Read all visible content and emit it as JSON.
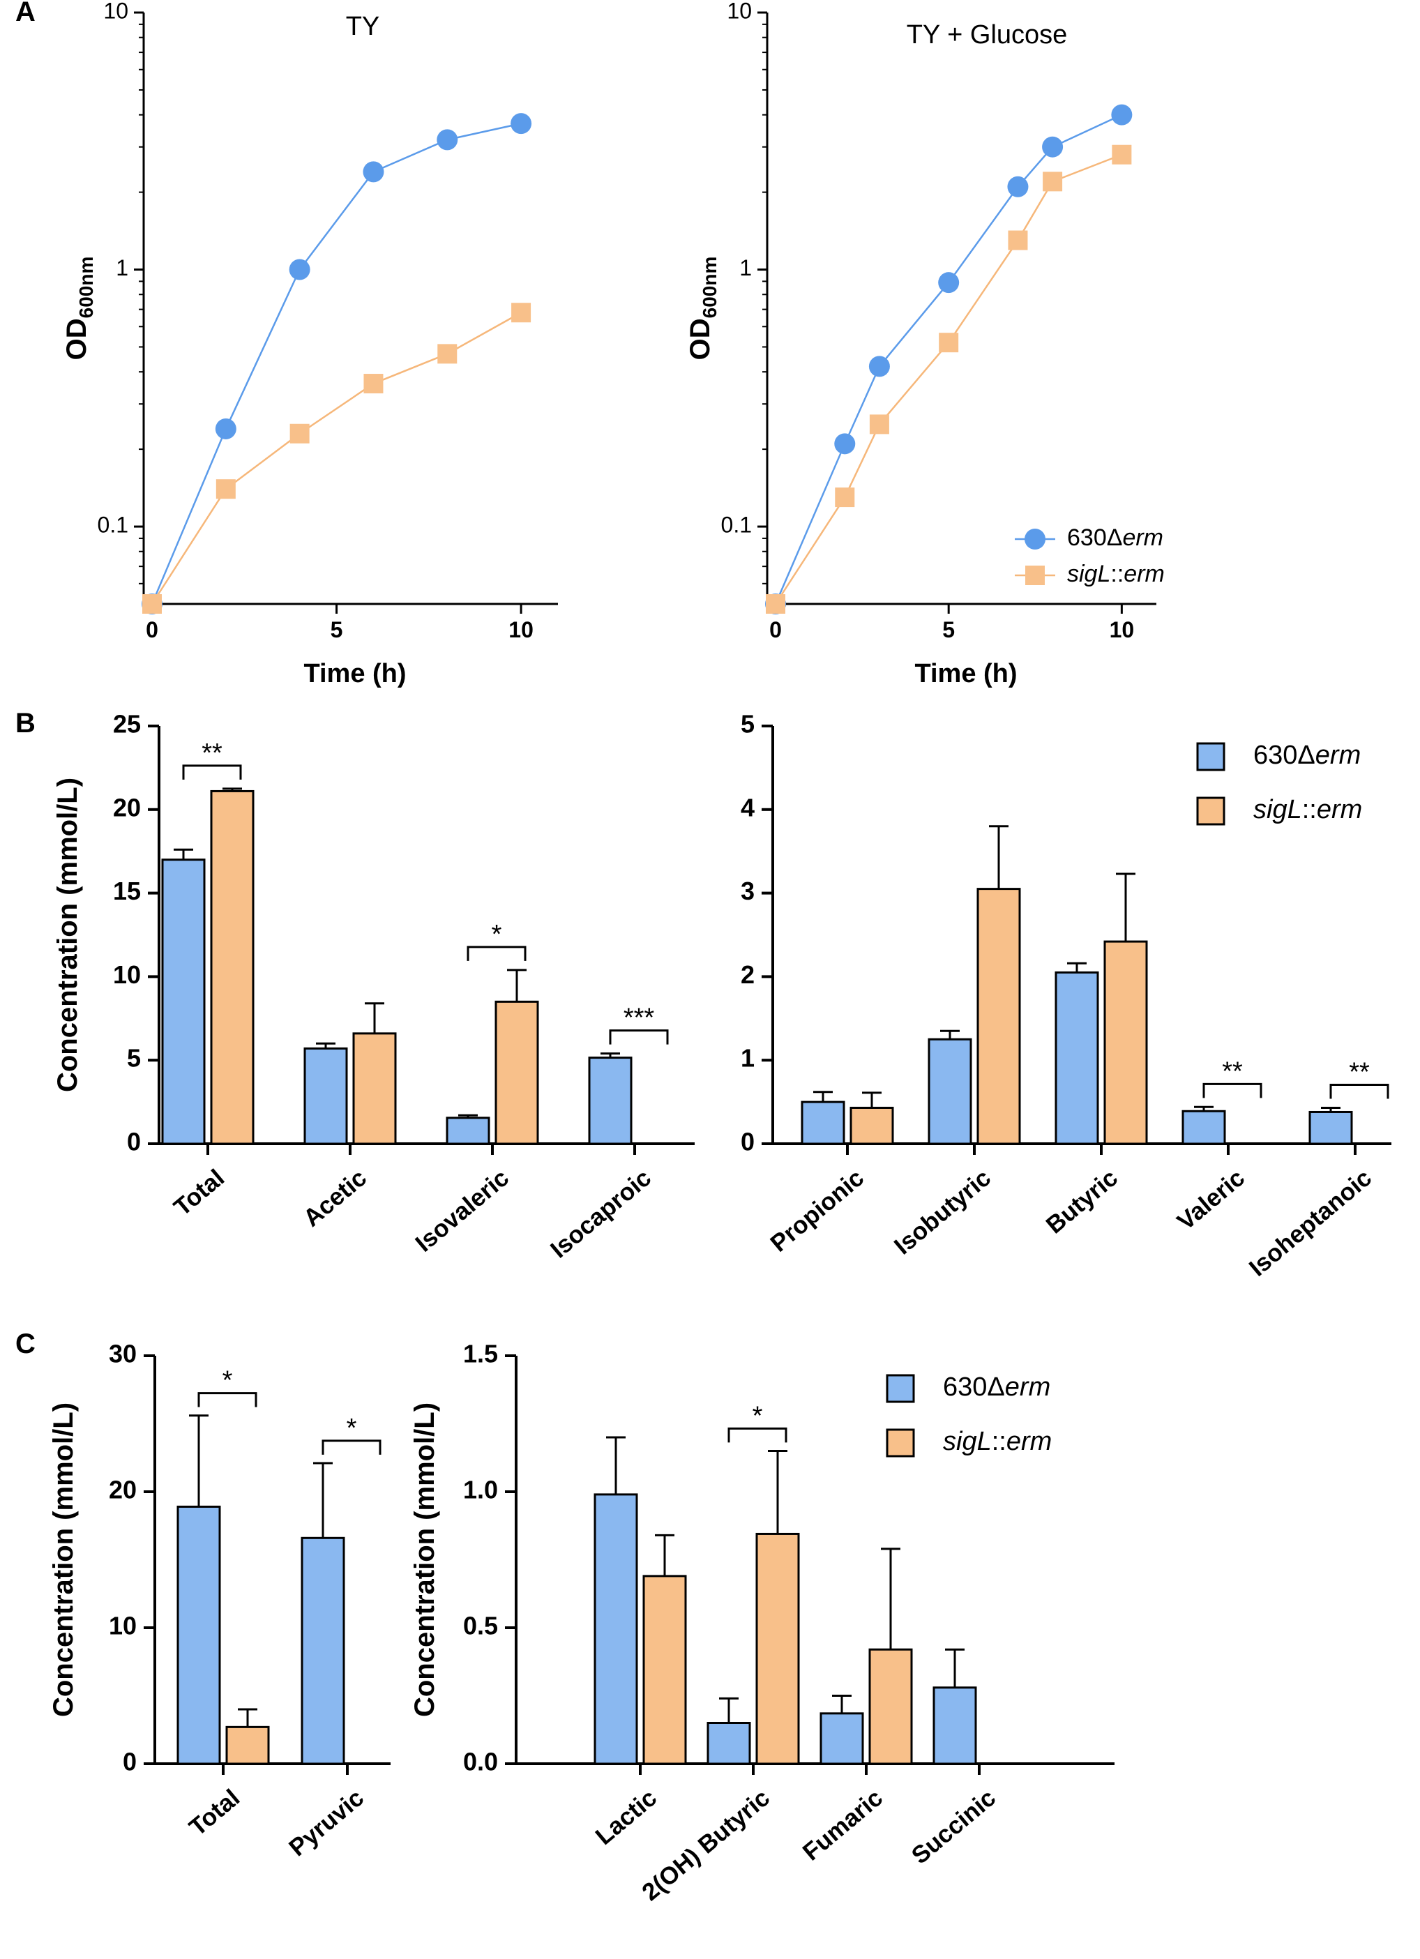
{
  "colors": {
    "wt": "#8ab8f0",
    "mut": "#f8c08a",
    "wt_line": "#5b9bea",
    "mut_line": "#f6b77a",
    "axis": "#000000"
  },
  "series_names": {
    "wt_prefix": "630Δ",
    "wt_italic": "erm",
    "mut_italic": "sigL",
    "mut_suffix": "::",
    "mut_italic2": "erm"
  },
  "panel_labels": {
    "a": "A",
    "b": "B",
    "c": "C"
  },
  "chart_data": [
    {
      "id": "a1",
      "type": "line",
      "title": "TY",
      "xlabel": "Time (h)",
      "ylabel": "OD",
      "ylabel_sub": "600nm",
      "yscale": "log",
      "xlim": [
        0,
        11
      ],
      "ylim": [
        0.05,
        10
      ],
      "xticks": [
        0,
        5,
        10
      ],
      "yticks": [
        0.1,
        1,
        10
      ],
      "ytick_labels": [
        "0.1",
        "1",
        "10"
      ],
      "series": [
        {
          "name": "630Δerm",
          "x": [
            0,
            2,
            4,
            6,
            8,
            10
          ],
          "values": [
            0.05,
            0.24,
            1.0,
            2.4,
            3.2,
            3.7
          ]
        },
        {
          "name": "sigL::erm",
          "x": [
            0,
            2,
            4,
            6,
            8,
            10
          ],
          "values": [
            0.05,
            0.14,
            0.23,
            0.36,
            0.47,
            0.68
          ]
        }
      ]
    },
    {
      "id": "a2",
      "type": "line",
      "title": "TY + Glucose",
      "xlabel": "Time (h)",
      "ylabel": "OD",
      "ylabel_sub": "600nm",
      "yscale": "log",
      "xlim": [
        0,
        11
      ],
      "ylim": [
        0.05,
        10
      ],
      "xticks": [
        0,
        5,
        10
      ],
      "yticks": [
        0.1,
        1,
        10
      ],
      "ytick_labels": [
        "0.1",
        "1",
        "10"
      ],
      "series": [
        {
          "name": "630Δerm",
          "x": [
            0,
            2,
            3,
            5,
            7,
            8,
            10
          ],
          "values": [
            0.05,
            0.21,
            0.42,
            0.89,
            2.1,
            3.0,
            4.0
          ]
        },
        {
          "name": "sigL::erm",
          "x": [
            0,
            2,
            3,
            5,
            7,
            8,
            10
          ],
          "values": [
            0.05,
            0.13,
            0.25,
            0.52,
            1.3,
            2.2,
            2.8
          ]
        }
      ]
    },
    {
      "id": "b1",
      "type": "bar",
      "ylabel": "Concentration (mmol/L)",
      "ylim": [
        0,
        25
      ],
      "yticks": [
        0,
        5,
        10,
        15,
        20,
        25
      ],
      "categories": [
        "Total",
        "Acetic",
        "Isovaleric",
        "Isocaproic"
      ],
      "series": [
        {
          "name": "630Δerm",
          "values": [
            17.0,
            5.7,
            1.55,
            5.15
          ],
          "errors": [
            0.6,
            0.3,
            0.15,
            0.25
          ]
        },
        {
          "name": "sigL::erm",
          "values": [
            21.1,
            6.6,
            8.5,
            0
          ],
          "errors": [
            0.15,
            1.8,
            1.9,
            0
          ]
        }
      ],
      "significance": [
        {
          "category": 0,
          "label": "**"
        },
        {
          "category": 2,
          "label": "*"
        },
        {
          "category": 3,
          "label": "***"
        }
      ]
    },
    {
      "id": "b2",
      "type": "bar",
      "ylim": [
        0,
        5
      ],
      "yticks": [
        0,
        1,
        2,
        3,
        4,
        5
      ],
      "categories": [
        "Propionic",
        "Isobutyric",
        "Butyric",
        "Valeric",
        "Isoheptanoic"
      ],
      "series": [
        {
          "name": "630Δerm",
          "values": [
            0.5,
            1.25,
            2.05,
            0.39,
            0.38
          ],
          "errors": [
            0.12,
            0.1,
            0.11,
            0.05,
            0.05
          ]
        },
        {
          "name": "sigL::erm",
          "values": [
            0.43,
            3.05,
            2.42,
            0,
            0
          ],
          "errors": [
            0.18,
            0.75,
            0.81,
            0,
            0
          ]
        }
      ],
      "significance": [
        {
          "category": 3,
          "label": "**"
        },
        {
          "category": 4,
          "label": "**"
        }
      ]
    },
    {
      "id": "c1",
      "type": "bar",
      "ylabel": "Concentration (mmol/L)",
      "ylim": [
        0,
        30
      ],
      "yticks": [
        0,
        10,
        20,
        30
      ],
      "categories": [
        "Total",
        "Pyruvic"
      ],
      "series": [
        {
          "name": "630Δerm",
          "values": [
            18.9,
            16.6
          ],
          "errors": [
            6.7,
            5.5
          ]
        },
        {
          "name": "sigL::erm",
          "values": [
            2.7,
            0
          ],
          "errors": [
            1.3,
            0
          ]
        }
      ],
      "significance": [
        {
          "category": 0,
          "label": "*"
        },
        {
          "category": 1,
          "label": "*"
        }
      ]
    },
    {
      "id": "c2",
      "type": "bar",
      "ylabel": "Concentration (mmol/L)",
      "ylim": [
        0,
        1.5
      ],
      "yticks": [
        0,
        0.5,
        1.0,
        1.5
      ],
      "ytick_labels": [
        "0.0",
        "0.5",
        "1.0",
        "1.5"
      ],
      "categories": [
        "Lactic",
        "2(OH) Butyric",
        "Fumaric",
        "Succinic"
      ],
      "series": [
        {
          "name": "630Δerm",
          "values": [
            0.99,
            0.15,
            0.185,
            0.28
          ],
          "errors": [
            0.21,
            0.09,
            0.065,
            0.14
          ]
        },
        {
          "name": "sigL::erm",
          "values": [
            0.69,
            0.845,
            0.42,
            0
          ],
          "errors": [
            0.15,
            0.305,
            0.37,
            0
          ]
        }
      ],
      "significance": [
        {
          "category": 1,
          "label": "*"
        }
      ]
    }
  ]
}
